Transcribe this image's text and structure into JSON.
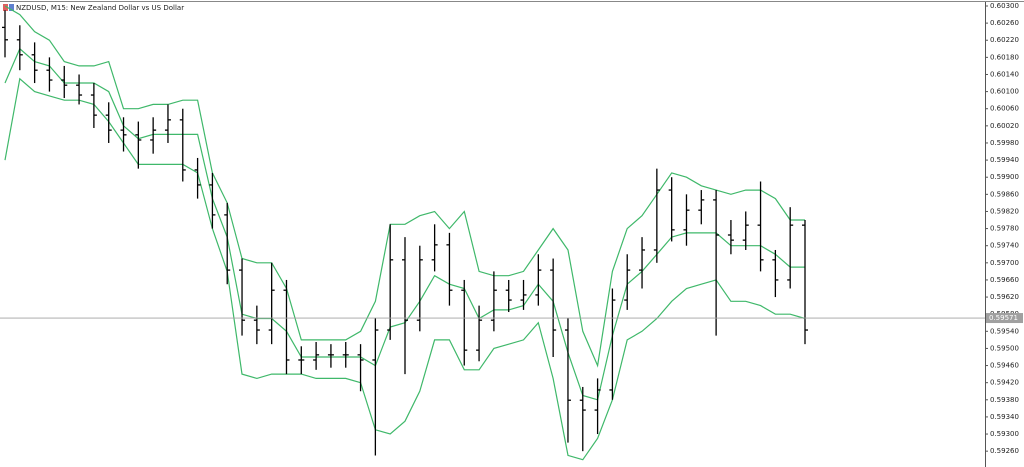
{
  "chart_data": {
    "type": "ohlc",
    "title": "NZDUSD, M15:  New Zealand Dollar vs US Dollar",
    "bar_color": "#000000",
    "open": [
      0.6025,
      0.60221,
      0.60186,
      0.6015,
      0.60127,
      0.60115,
      0.60092,
      0.60045,
      0.6001,
      0.59999,
      0.59987,
      0.6001,
      0.60034,
      0.59917,
      0.59882,
      0.59812,
      0.59683,
      0.59566,
      0.59543,
      0.59636,
      0.59473,
      0.59473,
      0.59485,
      0.59485,
      0.59485,
      0.59473,
      0.59543,
      0.59707,
      0.59566,
      0.59707,
      0.59742,
      0.59636,
      0.59496,
      0.59566,
      0.59636,
      0.59613,
      0.59625,
      0.59683,
      0.59543,
      0.59379,
      0.59356,
      0.59403,
      0.59613,
      0.59683,
      0.5973,
      0.5987,
      0.59777,
      0.59823,
      0.59847,
      0.59765,
      0.59753,
      0.59788,
      0.59707,
      0.5966,
      0.59788
    ],
    "high": [
      0.6029,
      0.60255,
      0.60215,
      0.6018,
      0.6016,
      0.6014,
      0.6012,
      0.60075,
      0.6004,
      0.6003,
      0.6004,
      0.6007,
      0.6006,
      0.59945,
      0.5991,
      0.5984,
      0.5971,
      0.596,
      0.597,
      0.5966,
      0.59505,
      0.59515,
      0.5951,
      0.59515,
      0.5951,
      0.5957,
      0.5979,
      0.5976,
      0.5974,
      0.5979,
      0.5977,
      0.5966,
      0.596,
      0.5968,
      0.5966,
      0.5966,
      0.5972,
      0.5971,
      0.5957,
      0.5941,
      0.5943,
      0.5964,
      0.5972,
      0.5976,
      0.5992,
      0.599,
      0.5986,
      0.5987,
      0.5987,
      0.598,
      0.5982,
      0.5989,
      0.5973,
      0.5983,
      0.598
    ],
    "low": [
      0.6018,
      0.6015,
      0.6012,
      0.601,
      0.60085,
      0.6007,
      0.60015,
      0.5998,
      0.5996,
      0.5992,
      0.59955,
      0.5998,
      0.5989,
      0.5985,
      0.5978,
      0.5965,
      0.5953,
      0.5951,
      0.5951,
      0.5944,
      0.5944,
      0.5945,
      0.59455,
      0.59455,
      0.594,
      0.5925,
      0.5952,
      0.5944,
      0.5954,
      0.5968,
      0.596,
      0.5946,
      0.5947,
      0.5954,
      0.59585,
      0.5959,
      0.596,
      0.5948,
      0.5928,
      0.5926,
      0.593,
      0.5938,
      0.5959,
      0.5964,
      0.597,
      0.5975,
      0.5974,
      0.5979,
      0.5953,
      0.5972,
      0.5973,
      0.5968,
      0.5962,
      0.5964,
      0.5951
    ],
    "close": [
      0.60221,
      0.60186,
      0.6015,
      0.60127,
      0.60115,
      0.60092,
      0.60045,
      0.6001,
      0.59999,
      0.59987,
      0.6001,
      0.60034,
      0.59917,
      0.59882,
      0.59812,
      0.59683,
      0.59566,
      0.59543,
      0.59636,
      0.59473,
      0.59473,
      0.59485,
      0.59485,
      0.59485,
      0.59473,
      0.59543,
      0.59707,
      0.59566,
      0.59707,
      0.59742,
      0.59636,
      0.59496,
      0.59566,
      0.59636,
      0.59613,
      0.59625,
      0.59683,
      0.59543,
      0.59379,
      0.59356,
      0.59403,
      0.59613,
      0.59683,
      0.5973,
      0.5987,
      0.59777,
      0.59823,
      0.59847,
      0.59765,
      0.59753,
      0.59788,
      0.59707,
      0.5966,
      0.59788,
      0.59543
    ],
    "bands": {
      "color": "#3fb86a",
      "upper": [
        0.603,
        0.6028,
        0.6024,
        0.6022,
        0.6017,
        0.6016,
        0.6016,
        0.6017,
        0.6006,
        0.6006,
        0.6007,
        0.6007,
        0.6008,
        0.6008,
        0.5991,
        0.5984,
        0.5971,
        0.597,
        0.597,
        0.5964,
        0.5952,
        0.5952,
        0.5952,
        0.5952,
        0.5954,
        0.5961,
        0.5979,
        0.5979,
        0.5981,
        0.5982,
        0.5978,
        0.5982,
        0.5968,
        0.5967,
        0.5967,
        0.5968,
        0.5973,
        0.5978,
        0.5973,
        0.5954,
        0.5946,
        0.5968,
        0.5978,
        0.5981,
        0.5986,
        0.5991,
        0.599,
        0.5988,
        0.5987,
        0.5986,
        0.5987,
        0.5987,
        0.5985,
        0.598,
        0.598
      ],
      "middle": [
        0.6012,
        0.602,
        0.6017,
        0.6016,
        0.6012,
        0.6012,
        0.6012,
        0.601,
        0.6002,
        0.5999,
        0.6,
        0.6,
        0.6,
        0.6,
        0.5985,
        0.5976,
        0.5958,
        0.5957,
        0.5957,
        0.5954,
        0.5948,
        0.5948,
        0.5948,
        0.5948,
        0.5948,
        0.5946,
        0.5955,
        0.5956,
        0.5961,
        0.5967,
        0.5965,
        0.5964,
        0.5957,
        0.5959,
        0.5959,
        0.596,
        0.5965,
        0.5961,
        0.5949,
        0.5939,
        0.5938,
        0.5953,
        0.5965,
        0.5968,
        0.5972,
        0.5976,
        0.5977,
        0.5977,
        0.5977,
        0.5974,
        0.5974,
        0.5974,
        0.5972,
        0.5969,
        0.5969
      ],
      "lower": [
        0.5994,
        0.6013,
        0.601,
        0.6009,
        0.6008,
        0.6008,
        0.6007,
        0.6003,
        0.5998,
        0.5993,
        0.5993,
        0.5993,
        0.5993,
        0.5991,
        0.5978,
        0.5968,
        0.5944,
        0.5943,
        0.5944,
        0.5944,
        0.5944,
        0.5943,
        0.5943,
        0.5943,
        0.5942,
        0.5931,
        0.593,
        0.5933,
        0.594,
        0.5952,
        0.5952,
        0.5945,
        0.5945,
        0.595,
        0.5951,
        0.5952,
        0.5956,
        0.5943,
        0.5925,
        0.5924,
        0.5929,
        0.5938,
        0.5952,
        0.5954,
        0.5957,
        0.5961,
        0.5964,
        0.5965,
        0.5966,
        0.5961,
        0.5961,
        0.596,
        0.5958,
        0.5958,
        0.5957
      ]
    },
    "current_price": 0.59571,
    "current_price_color": "#a0a0a0",
    "ylim": [
      0.59223,
      0.60314
    ],
    "yticks": [
      {
        "value": 0.603,
        "label": "0.60300"
      },
      {
        "value": 0.6026,
        "label": "0.60260"
      },
      {
        "value": 0.6022,
        "label": "0.60220"
      },
      {
        "value": 0.6018,
        "label": "0.60180"
      },
      {
        "value": 0.6014,
        "label": "0.60140"
      },
      {
        "value": 0.601,
        "label": "0.60100"
      },
      {
        "value": 0.6006,
        "label": "0.60060"
      },
      {
        "value": 0.6002,
        "label": "0.60020"
      },
      {
        "value": 0.5998,
        "label": "0.59980"
      },
      {
        "value": 0.5994,
        "label": "0.59940"
      },
      {
        "value": 0.599,
        "label": "0.59900"
      },
      {
        "value": 0.5986,
        "label": "0.59860"
      },
      {
        "value": 0.5982,
        "label": "0.59820"
      },
      {
        "value": 0.5978,
        "label": "0.59780"
      },
      {
        "value": 0.5974,
        "label": "0.59740"
      },
      {
        "value": 0.597,
        "label": "0.59700"
      },
      {
        "value": 0.5966,
        "label": "0.59660"
      },
      {
        "value": 0.5962,
        "label": "0.59620"
      },
      {
        "value": 0.5958,
        "label": "0.59580"
      },
      {
        "value": 0.5954,
        "label": "0.59540"
      },
      {
        "value": 0.595,
        "label": "0.59500"
      },
      {
        "value": 0.5946,
        "label": "0.59460"
      },
      {
        "value": 0.5942,
        "label": "0.59420"
      },
      {
        "value": 0.5938,
        "label": "0.59380"
      },
      {
        "value": 0.5934,
        "label": "0.59340"
      },
      {
        "value": 0.593,
        "label": "0.59300"
      },
      {
        "value": 0.5926,
        "label": "0.59260"
      }
    ]
  }
}
